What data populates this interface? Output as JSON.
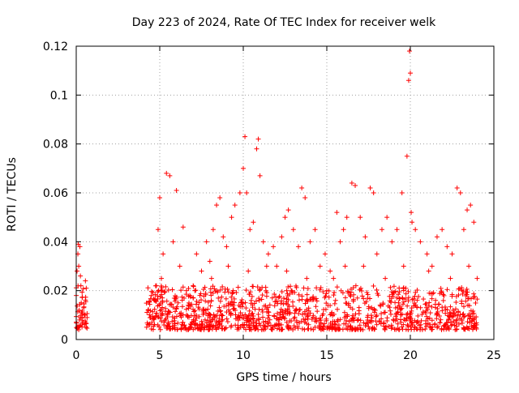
{
  "chart_data": {
    "type": "scatter",
    "title": "Day 223 of 2024, Rate Of TEC Index for receiver welk",
    "xlabel": "GPS time / hours",
    "ylabel": "ROTI / TECUs",
    "xlim": [
      0,
      25
    ],
    "ylim": [
      0,
      0.12
    ],
    "xticks": [
      0,
      5,
      10,
      15,
      20,
      25
    ],
    "xtick_labels": [
      "0",
      "5",
      "10",
      "15",
      "20",
      "25"
    ],
    "yticks": [
      0,
      0.02,
      0.04,
      0.06,
      0.08,
      0.1,
      0.12
    ],
    "ytick_labels": [
      "0",
      "0.02",
      "0.04",
      "0.06",
      "0.08",
      "0.1",
      "0.12"
    ],
    "grid": true,
    "marker": "plus",
    "color": "#ff0000",
    "series": [
      {
        "name": "ROTI",
        "points": [
          [
            0.0,
            0.018
          ],
          [
            0.05,
            0.028
          ],
          [
            0.1,
            0.035
          ],
          [
            0.12,
            0.039
          ],
          [
            0.15,
            0.03
          ],
          [
            0.18,
            0.012
          ],
          [
            0.2,
            0.008
          ],
          [
            0.22,
            0.038
          ],
          [
            0.25,
            0.026
          ],
          [
            0.28,
            0.022
          ],
          [
            0.3,
            0.015
          ],
          [
            0.32,
            0.011
          ],
          [
            0.35,
            0.009
          ],
          [
            0.4,
            0.007
          ],
          [
            0.45,
            0.013
          ],
          [
            0.5,
            0.006
          ],
          [
            0.55,
            0.024
          ],
          [
            0.6,
            0.021
          ],
          [
            0.65,
            0.009
          ],
          [
            0.08,
            0.005
          ],
          [
            0.15,
            0.004
          ],
          [
            4.3,
            0.012
          ],
          [
            4.5,
            0.018
          ],
          [
            4.8,
            0.022
          ],
          [
            4.9,
            0.045
          ],
          [
            5.0,
            0.058
          ],
          [
            5.2,
            0.035
          ],
          [
            5.4,
            0.068
          ],
          [
            5.6,
            0.067
          ],
          [
            5.8,
            0.04
          ],
          [
            6.0,
            0.061
          ],
          [
            6.2,
            0.03
          ],
          [
            6.4,
            0.046
          ],
          [
            6.6,
            0.02
          ],
          [
            6.8,
            0.018
          ],
          [
            7.0,
            0.022
          ],
          [
            7.2,
            0.035
          ],
          [
            7.5,
            0.028
          ],
          [
            7.8,
            0.04
          ],
          [
            8.0,
            0.032
          ],
          [
            8.2,
            0.045
          ],
          [
            8.4,
            0.055
          ],
          [
            8.6,
            0.058
          ],
          [
            8.8,
            0.042
          ],
          [
            9.0,
            0.038
          ],
          [
            9.3,
            0.05
          ],
          [
            9.5,
            0.055
          ],
          [
            9.8,
            0.06
          ],
          [
            10.0,
            0.07
          ],
          [
            10.1,
            0.083
          ],
          [
            10.2,
            0.06
          ],
          [
            10.4,
            0.045
          ],
          [
            10.6,
            0.048
          ],
          [
            10.8,
            0.078
          ],
          [
            10.9,
            0.082
          ],
          [
            11.0,
            0.067
          ],
          [
            11.2,
            0.04
          ],
          [
            11.5,
            0.035
          ],
          [
            11.8,
            0.038
          ],
          [
            12.0,
            0.03
          ],
          [
            12.3,
            0.042
          ],
          [
            12.5,
            0.05
          ],
          [
            12.7,
            0.053
          ],
          [
            13.0,
            0.045
          ],
          [
            13.3,
            0.038
          ],
          [
            13.5,
            0.062
          ],
          [
            13.7,
            0.058
          ],
          [
            14.0,
            0.04
          ],
          [
            14.3,
            0.045
          ],
          [
            14.6,
            0.03
          ],
          [
            14.9,
            0.035
          ],
          [
            15.2,
            0.028
          ],
          [
            15.4,
            0.025
          ],
          [
            15.6,
            0.052
          ],
          [
            15.8,
            0.04
          ],
          [
            16.0,
            0.045
          ],
          [
            16.2,
            0.05
          ],
          [
            16.5,
            0.064
          ],
          [
            16.7,
            0.063
          ],
          [
            17.0,
            0.05
          ],
          [
            17.3,
            0.042
          ],
          [
            17.6,
            0.062
          ],
          [
            17.8,
            0.06
          ],
          [
            18.0,
            0.035
          ],
          [
            18.3,
            0.045
          ],
          [
            18.6,
            0.05
          ],
          [
            18.9,
            0.04
          ],
          [
            19.2,
            0.045
          ],
          [
            19.5,
            0.06
          ],
          [
            19.8,
            0.075
          ],
          [
            19.9,
            0.106
          ],
          [
            19.95,
            0.118
          ],
          [
            20.0,
            0.109
          ],
          [
            20.05,
            0.052
          ],
          [
            20.1,
            0.048
          ],
          [
            20.3,
            0.045
          ],
          [
            20.6,
            0.04
          ],
          [
            21.0,
            0.035
          ],
          [
            21.3,
            0.03
          ],
          [
            21.6,
            0.042
          ],
          [
            21.9,
            0.045
          ],
          [
            22.2,
            0.038
          ],
          [
            22.5,
            0.035
          ],
          [
            22.8,
            0.062
          ],
          [
            23.0,
            0.06
          ],
          [
            23.2,
            0.045
          ],
          [
            23.4,
            0.053
          ],
          [
            23.6,
            0.055
          ],
          [
            23.8,
            0.048
          ],
          [
            24.0,
            0.025
          ],
          [
            5.1,
            0.025
          ],
          [
            6.1,
            0.015
          ],
          [
            7.1,
            0.02
          ],
          [
            8.1,
            0.025
          ],
          [
            9.1,
            0.03
          ],
          [
            10.3,
            0.028
          ],
          [
            11.4,
            0.03
          ],
          [
            12.6,
            0.028
          ],
          [
            13.8,
            0.025
          ],
          [
            15.0,
            0.02
          ],
          [
            16.1,
            0.03
          ],
          [
            17.2,
            0.03
          ],
          [
            18.5,
            0.025
          ],
          [
            19.6,
            0.03
          ],
          [
            21.1,
            0.028
          ],
          [
            22.4,
            0.025
          ],
          [
            23.5,
            0.03
          ]
        ],
        "base_band": {
          "x_ranges": [
            [
              0.0,
              0.7
            ],
            [
              4.2,
              24.0
            ]
          ],
          "y_min": 0.004,
          "y_max": 0.022
        }
      }
    ]
  }
}
